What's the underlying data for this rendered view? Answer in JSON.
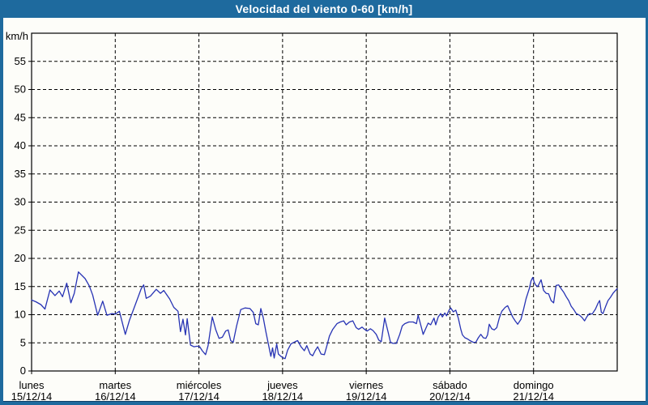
{
  "window": {
    "title": "Velocidad del viento 0-60 [km/h]"
  },
  "colors": {
    "titlebar": "#1e6a9e",
    "title_text": "#ffffff",
    "border": "#1e6a9e",
    "border_inner": "#0f4068",
    "background": "#fdfdf9",
    "grid": "#000000",
    "text": "#000000",
    "line": "#2733b4"
  },
  "chart_data": {
    "type": "line",
    "title": "Velocidad del viento 0-60 [km/h]",
    "unit_label": "km/h",
    "ylabel": "km/h",
    "ylim": [
      0,
      60
    ],
    "ytick_interval": 5,
    "ytick_labels": [
      0,
      5,
      10,
      15,
      20,
      25,
      30,
      35,
      40,
      45,
      50,
      55
    ],
    "grid": "dashed",
    "legend": "none",
    "x_categories": [
      {
        "day": "lunes",
        "date": "15/12/14"
      },
      {
        "day": "martes",
        "date": "16/12/14"
      },
      {
        "day": "miércoles",
        "date": "17/12/14"
      },
      {
        "day": "jueves",
        "date": "18/12/14"
      },
      {
        "day": "viernes",
        "date": "19/12/14"
      },
      {
        "day": "sábado",
        "date": "20/12/14"
      },
      {
        "day": "domingo",
        "date": "21/12/14"
      }
    ],
    "series": [
      {
        "name": "Velocidad del viento",
        "color": "#2733b4",
        "x_unit": "days_from_start",
        "points": [
          [
            0.0,
            12.6
          ],
          [
            0.05,
            12.3
          ],
          [
            0.11,
            11.8
          ],
          [
            0.16,
            11.0
          ],
          [
            0.22,
            14.4
          ],
          [
            0.28,
            13.4
          ],
          [
            0.33,
            14.2
          ],
          [
            0.37,
            13.2
          ],
          [
            0.42,
            15.6
          ],
          [
            0.47,
            12.1
          ],
          [
            0.51,
            13.8
          ],
          [
            0.56,
            17.6
          ],
          [
            0.64,
            16.4
          ],
          [
            0.69,
            15.1
          ],
          [
            0.73,
            13.5
          ],
          [
            0.79,
            9.9
          ],
          [
            0.85,
            12.4
          ],
          [
            0.9,
            9.9
          ],
          [
            0.96,
            10.2
          ],
          [
            1.0,
            10.1
          ],
          [
            1.05,
            10.6
          ],
          [
            1.12,
            6.5
          ],
          [
            1.17,
            9.0
          ],
          [
            1.22,
            11.0
          ],
          [
            1.27,
            13.0
          ],
          [
            1.31,
            14.6
          ],
          [
            1.34,
            15.3
          ],
          [
            1.37,
            12.9
          ],
          [
            1.42,
            13.3
          ],
          [
            1.49,
            14.5
          ],
          [
            1.54,
            13.8
          ],
          [
            1.58,
            14.3
          ],
          [
            1.65,
            12.8
          ],
          [
            1.7,
            11.3
          ],
          [
            1.75,
            10.6
          ],
          [
            1.78,
            7.0
          ],
          [
            1.81,
            9.2
          ],
          [
            1.84,
            6.4
          ],
          [
            1.86,
            9.3
          ],
          [
            1.9,
            4.6
          ],
          [
            1.94,
            4.3
          ],
          [
            1.98,
            4.4
          ],
          [
            2.01,
            4.3
          ],
          [
            2.04,
            3.6
          ],
          [
            2.08,
            2.9
          ],
          [
            2.11,
            4.5
          ],
          [
            2.16,
            9.6
          ],
          [
            2.2,
            7.4
          ],
          [
            2.24,
            5.8
          ],
          [
            2.28,
            6.0
          ],
          [
            2.32,
            7.1
          ],
          [
            2.35,
            7.3
          ],
          [
            2.38,
            5.4
          ],
          [
            2.41,
            5.1
          ],
          [
            2.45,
            8.0
          ],
          [
            2.5,
            10.9
          ],
          [
            2.55,
            11.2
          ],
          [
            2.61,
            11.1
          ],
          [
            2.65,
            10.4
          ],
          [
            2.68,
            8.4
          ],
          [
            2.71,
            8.2
          ],
          [
            2.74,
            11.1
          ],
          [
            2.77,
            9.4
          ],
          [
            2.8,
            7.0
          ],
          [
            2.83,
            4.8
          ],
          [
            2.86,
            2.6
          ],
          [
            2.88,
            4.1
          ],
          [
            2.9,
            2.3
          ],
          [
            2.93,
            4.8
          ],
          [
            2.95,
            3.0
          ],
          [
            2.98,
            2.6
          ],
          [
            3.01,
            2.3
          ],
          [
            3.03,
            2.2
          ],
          [
            3.06,
            3.7
          ],
          [
            3.1,
            4.8
          ],
          [
            3.15,
            5.2
          ],
          [
            3.18,
            5.4
          ],
          [
            3.22,
            4.3
          ],
          [
            3.26,
            3.6
          ],
          [
            3.29,
            4.5
          ],
          [
            3.33,
            3.0
          ],
          [
            3.36,
            2.7
          ],
          [
            3.39,
            3.6
          ],
          [
            3.42,
            4.3
          ],
          [
            3.46,
            3.0
          ],
          [
            3.5,
            2.9
          ],
          [
            3.53,
            4.5
          ],
          [
            3.56,
            6.2
          ],
          [
            3.6,
            7.4
          ],
          [
            3.65,
            8.4
          ],
          [
            3.69,
            8.7
          ],
          [
            3.73,
            8.9
          ],
          [
            3.76,
            8.2
          ],
          [
            3.8,
            8.7
          ],
          [
            3.84,
            8.9
          ],
          [
            3.88,
            7.7
          ],
          [
            3.91,
            7.4
          ],
          [
            3.95,
            7.8
          ],
          [
            3.98,
            7.4
          ],
          [
            4.01,
            7.1
          ],
          [
            4.05,
            7.5
          ],
          [
            4.08,
            7.2
          ],
          [
            4.12,
            6.5
          ],
          [
            4.15,
            5.5
          ],
          [
            4.18,
            5.2
          ],
          [
            4.22,
            9.4
          ],
          [
            4.26,
            7.0
          ],
          [
            4.29,
            5.1
          ],
          [
            4.32,
            4.9
          ],
          [
            4.36,
            4.9
          ],
          [
            4.4,
            6.5
          ],
          [
            4.43,
            8.0
          ],
          [
            4.46,
            8.4
          ],
          [
            4.51,
            8.7
          ],
          [
            4.56,
            8.7
          ],
          [
            4.6,
            8.4
          ],
          [
            4.62,
            9.9
          ],
          [
            4.66,
            7.7
          ],
          [
            4.68,
            6.5
          ],
          [
            4.71,
            7.5
          ],
          [
            4.74,
            8.5
          ],
          [
            4.77,
            8.2
          ],
          [
            4.81,
            9.4
          ],
          [
            4.83,
            8.2
          ],
          [
            4.86,
            9.6
          ],
          [
            4.89,
            10.2
          ],
          [
            4.91,
            9.6
          ],
          [
            4.94,
            10.3
          ],
          [
            4.96,
            9.8
          ],
          [
            4.99,
            10.8
          ],
          [
            5.01,
            11.2
          ],
          [
            5.04,
            10.5
          ],
          [
            5.07,
            10.8
          ],
          [
            5.1,
            9.4
          ],
          [
            5.13,
            7.4
          ],
          [
            5.15,
            6.4
          ],
          [
            5.18,
            5.9
          ],
          [
            5.21,
            5.7
          ],
          [
            5.24,
            5.4
          ],
          [
            5.28,
            5.1
          ],
          [
            5.31,
            5.1
          ],
          [
            5.34,
            5.9
          ],
          [
            5.37,
            6.5
          ],
          [
            5.4,
            5.9
          ],
          [
            5.43,
            5.8
          ],
          [
            5.45,
            6.4
          ],
          [
            5.47,
            8.3
          ],
          [
            5.5,
            7.5
          ],
          [
            5.53,
            7.3
          ],
          [
            5.56,
            7.7
          ],
          [
            5.59,
            9.4
          ],
          [
            5.62,
            10.6
          ],
          [
            5.66,
            11.3
          ],
          [
            5.69,
            11.6
          ],
          [
            5.72,
            10.6
          ],
          [
            5.75,
            9.6
          ],
          [
            5.78,
            8.9
          ],
          [
            5.81,
            8.3
          ],
          [
            5.85,
            9.2
          ],
          [
            5.88,
            10.9
          ],
          [
            5.91,
            12.8
          ],
          [
            5.95,
            14.7
          ],
          [
            5.97,
            16.0
          ],
          [
            5.99,
            16.6
          ],
          [
            6.01,
            15.7
          ],
          [
            6.03,
            15.2
          ],
          [
            6.05,
            15.0
          ],
          [
            6.09,
            16.2
          ],
          [
            6.12,
            14.3
          ],
          [
            6.15,
            13.8
          ],
          [
            6.18,
            13.7
          ],
          [
            6.21,
            12.5
          ],
          [
            6.24,
            12.1
          ],
          [
            6.27,
            15.2
          ],
          [
            6.3,
            15.3
          ],
          [
            6.33,
            14.6
          ],
          [
            6.36,
            14.0
          ],
          [
            6.39,
            13.2
          ],
          [
            6.42,
            12.5
          ],
          [
            6.45,
            11.5
          ],
          [
            6.48,
            10.9
          ],
          [
            6.51,
            10.2
          ],
          [
            6.55,
            9.9
          ],
          [
            6.58,
            9.5
          ],
          [
            6.61,
            8.9
          ],
          [
            6.64,
            9.7
          ],
          [
            6.67,
            10.2
          ],
          [
            6.7,
            10.1
          ],
          [
            6.74,
            11.0
          ],
          [
            6.77,
            12.0
          ],
          [
            6.79,
            12.5
          ],
          [
            6.81,
            10.4
          ],
          [
            6.83,
            10.2
          ],
          [
            6.86,
            11.4
          ],
          [
            6.89,
            12.5
          ],
          [
            6.92,
            13.1
          ],
          [
            6.95,
            13.8
          ],
          [
            6.98,
            14.3
          ],
          [
            7.0,
            14.6
          ]
        ]
      }
    ]
  }
}
